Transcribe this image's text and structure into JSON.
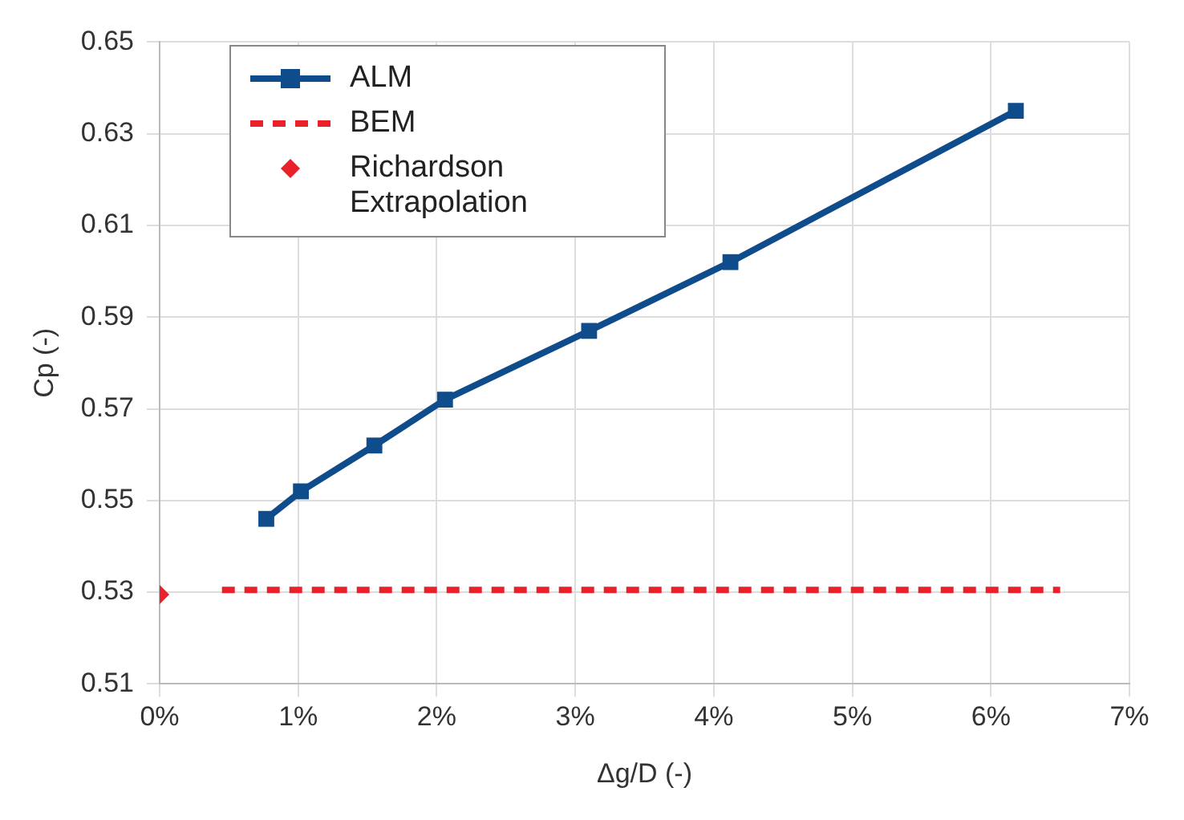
{
  "chart_data": {
    "type": "line",
    "xlabel": "Δg/D (-)",
    "ylabel": "Cp (-)",
    "xlim": [
      0,
      7
    ],
    "xticks": [
      {
        "value": 0,
        "label": "0%"
      },
      {
        "value": 1,
        "label": "1%"
      },
      {
        "value": 2,
        "label": "2%"
      },
      {
        "value": 3,
        "label": "3%"
      },
      {
        "value": 4,
        "label": "4%"
      },
      {
        "value": 5,
        "label": "5%"
      },
      {
        "value": 6,
        "label": "6%"
      },
      {
        "value": 7,
        "label": "7%"
      }
    ],
    "ylim": [
      0.51,
      0.65
    ],
    "yticks": [
      0.51,
      0.53,
      0.55,
      0.57,
      0.59,
      0.61,
      0.63,
      0.65
    ],
    "grid": true,
    "legend": "top left",
    "series": [
      {
        "name": "ALM",
        "type": "line",
        "color": "#0f4c8c",
        "marker": "square",
        "line_style": "solid",
        "x": [
          0.77,
          1.02,
          1.55,
          2.06,
          3.1,
          4.12,
          6.18
        ],
        "values": [
          0.546,
          0.552,
          0.562,
          0.572,
          0.587,
          0.602,
          0.635
        ]
      },
      {
        "name": "BEM",
        "type": "line",
        "color": "#e8212b",
        "marker": "none",
        "line_style": "dashed",
        "x": [
          0.45,
          6.5
        ],
        "values": [
          0.5305,
          0.5305
        ]
      },
      {
        "name": "Richardson Extrapolation",
        "type": "scatter",
        "color": "#e8212b",
        "marker": "diamond",
        "x": [
          0
        ],
        "values": [
          0.5295
        ]
      }
    ]
  }
}
